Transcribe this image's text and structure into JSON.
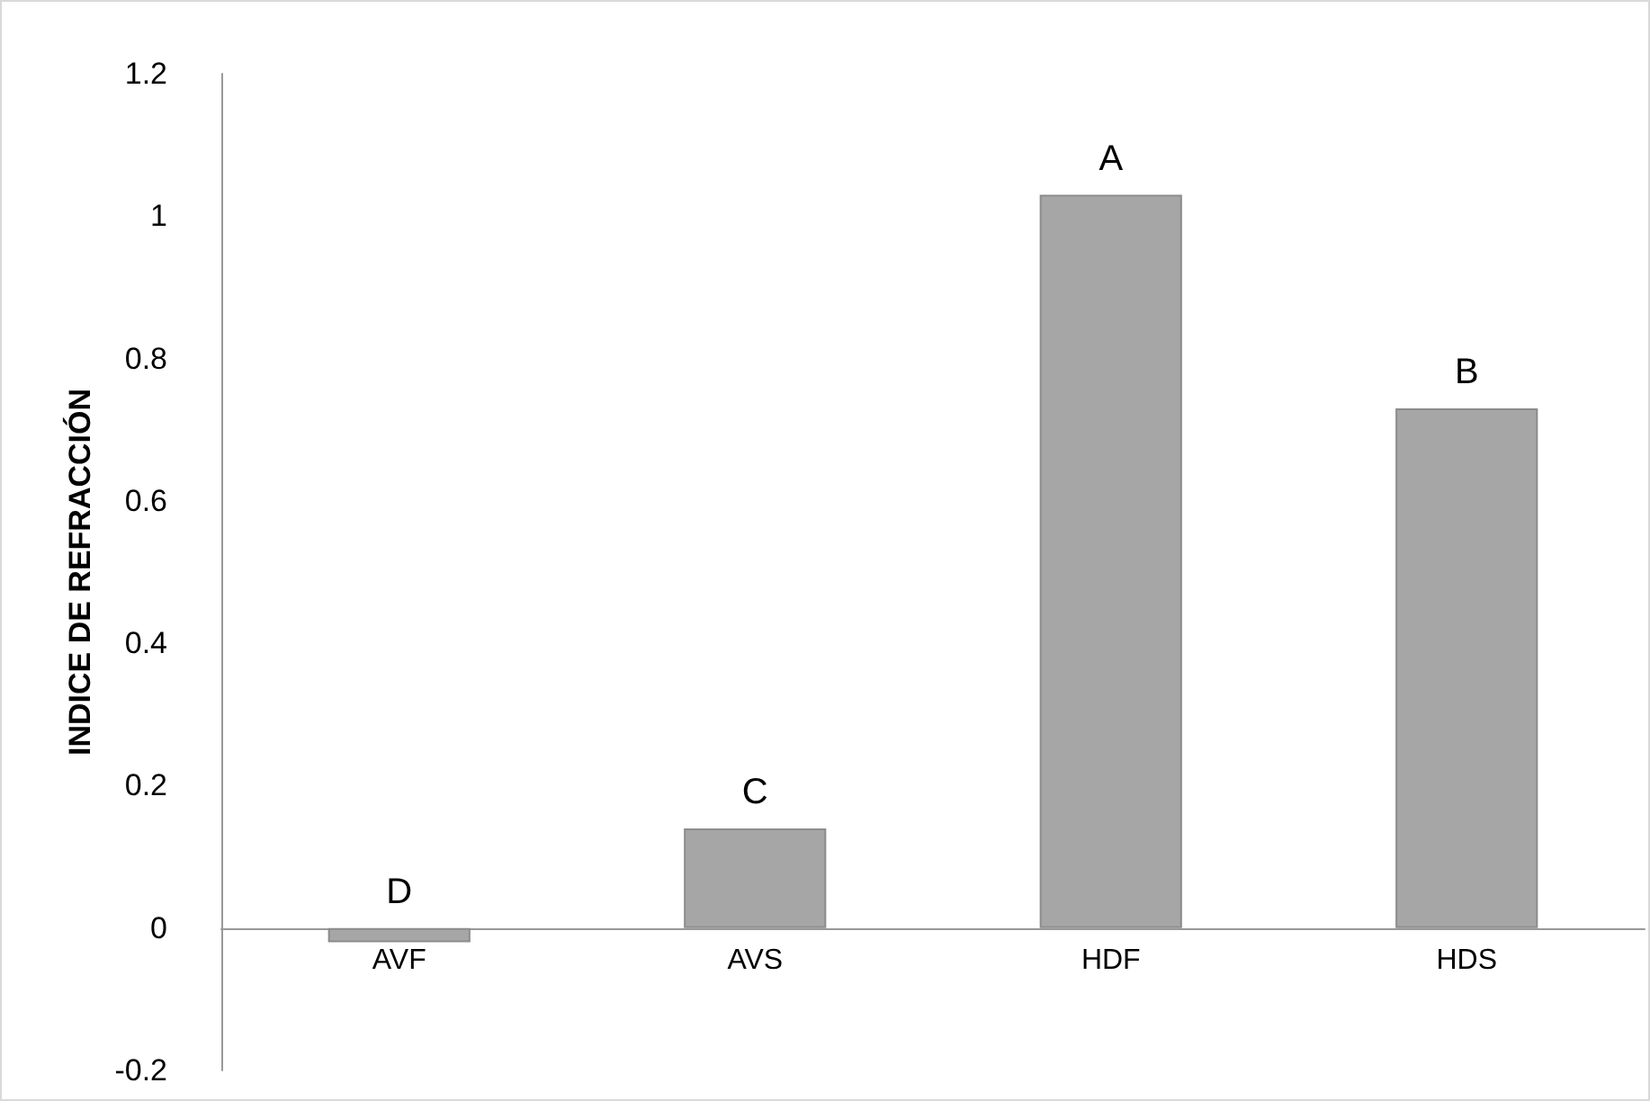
{
  "chart_data": {
    "type": "bar",
    "ylabel": "INDICE DE REFRACCIÓN",
    "categories": [
      "AVF",
      "AVS",
      "HDF",
      "HDS"
    ],
    "values": [
      -0.02,
      0.14,
      1.03,
      0.73
    ],
    "value_labels": [
      "D",
      "C",
      "A",
      "B"
    ],
    "color": "#a6a6a6",
    "ylim": [
      -0.2,
      1.2
    ],
    "yticks": [
      -0.2,
      0,
      0.2,
      0.4,
      0.6,
      0.8,
      1,
      1.2
    ]
  }
}
